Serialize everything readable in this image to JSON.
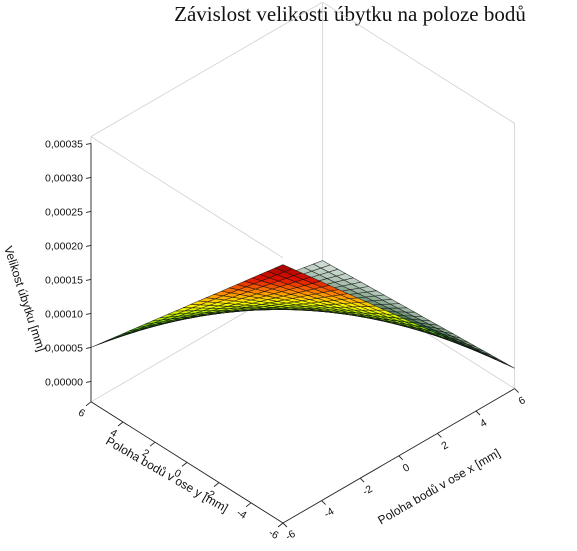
{
  "chart_data": {
    "type": "surface",
    "title": "Závislost velikosti úbytku na poloze bodů",
    "xlabel": "Poloha bodů v ose x [mm]",
    "ylabel": "Poloha bodů v ose y [mm]",
    "zlabel": "Velikost úbytku [mm]",
    "x_ticks": [
      "-6",
      "-4",
      "-2",
      "0",
      "2",
      "4",
      "6"
    ],
    "y_ticks": [
      "-6",
      "-4",
      "-2",
      "0",
      "2",
      "4",
      "6"
    ],
    "z_ticks": [
      "0,00000",
      "0,00005",
      "0,00010",
      "0,00015",
      "0,00020",
      "0,00025",
      "0,00030",
      "0,00035"
    ],
    "xlim": [
      -6,
      6
    ],
    "ylim": [
      -6,
      6
    ],
    "zlim": [
      -3e-05,
      0.00036
    ],
    "grid_size": 25,
    "corner_values": {
      "x_min_y_max": 5e-05,
      "x_max_y_min": 0.0,
      "x_min_y_min": 0.00035,
      "x_max_y_max": -2e-05
    },
    "colormap": [
      "#ffffff",
      "#1f5a2c",
      "#10a020",
      "#8fe000",
      "#ffff00",
      "#ff8c00",
      "#e01000",
      "#a00000"
    ]
  }
}
